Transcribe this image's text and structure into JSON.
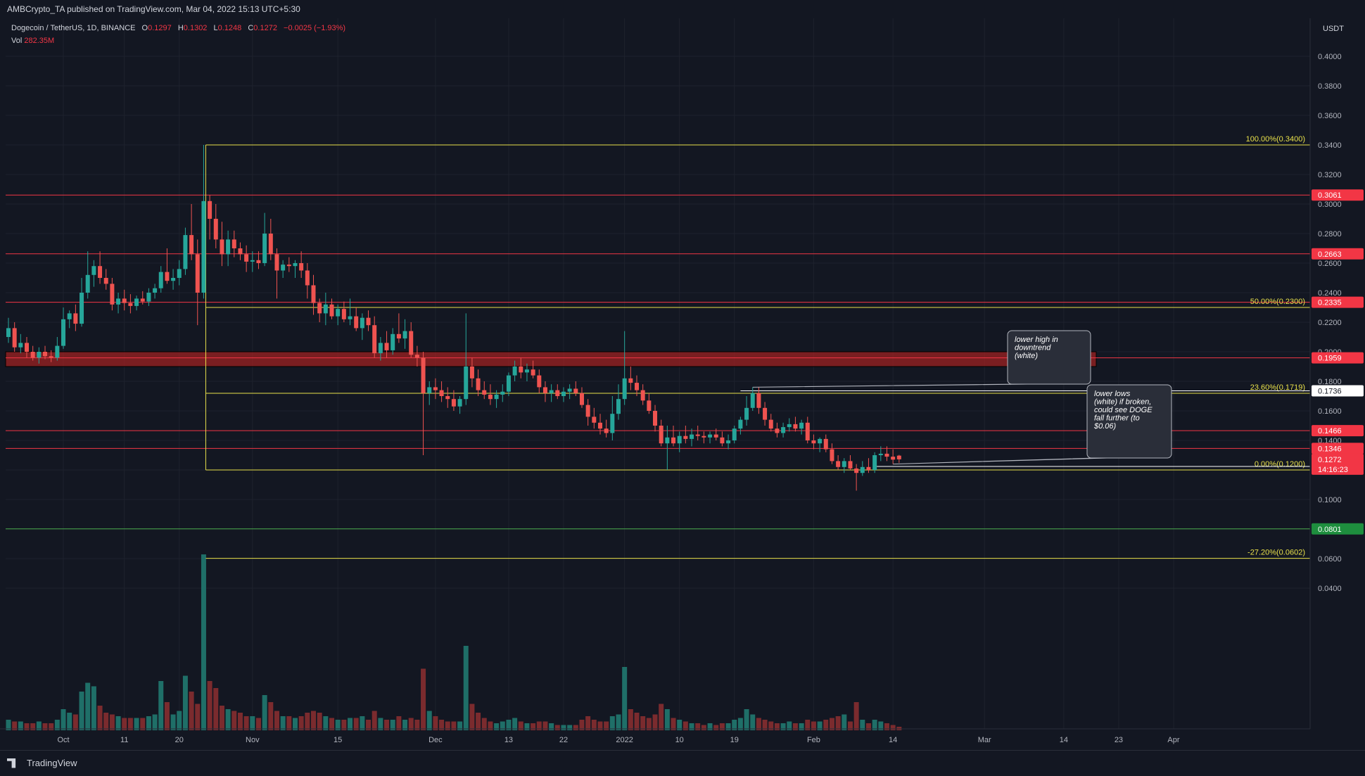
{
  "header": {
    "published": "AMBCrypto_TA published on TradingView.com, Mar 04, 2022 15:13 UTC+5:30"
  },
  "legend": {
    "symbol": "Dogecoin / TetherUS, 1D, BINANCE",
    "o_label": "O",
    "o_value": "0.1297",
    "h_label": "H",
    "h_value": "0.1302",
    "l_label": "L",
    "l_value": "0.1248",
    "c_label": "C",
    "c_value": "0.1272",
    "change": "−0.0025 (−1.93%)",
    "vol_label": "Vol",
    "vol_value": "282.35M"
  },
  "footer": {
    "brand": "TradingView"
  },
  "colors": {
    "background": "#131722",
    "up": "#26a69a",
    "down": "#ef5350",
    "level_red": "#f23645",
    "fib_yellow": "#e8e04a",
    "support_green": "#4caf50",
    "white": "#ffffff"
  },
  "chart_data": {
    "type": "candlestick",
    "currency": "USDT",
    "y_axis_ticks": [
      "0.0400",
      "0.0600",
      "0.1000",
      "0.1200",
      "0.1400",
      "0.1600",
      "0.1800",
      "0.2000",
      "0.2200",
      "0.2400",
      "0.2600",
      "0.2800",
      "0.3000",
      "0.3200",
      "0.3400",
      "0.3600",
      "0.3800",
      "0.4000"
    ],
    "x_axis_labels": [
      {
        "label": "Oct",
        "date": "2021-10-01"
      },
      {
        "label": "11",
        "date": "2021-10-11"
      },
      {
        "label": "20",
        "date": "2021-10-20"
      },
      {
        "label": "Nov",
        "date": "2021-11-01"
      },
      {
        "label": "15",
        "date": "2021-11-15"
      },
      {
        "label": "Dec",
        "date": "2021-12-01"
      },
      {
        "label": "13",
        "date": "2021-12-13"
      },
      {
        "label": "22",
        "date": "2021-12-22"
      },
      {
        "label": "2022",
        "date": "2022-01-01"
      },
      {
        "label": "10",
        "date": "2022-01-10"
      },
      {
        "label": "19",
        "date": "2022-01-19"
      },
      {
        "label": "Feb",
        "date": "2022-02-01"
      },
      {
        "label": "14",
        "date": "2022-02-14"
      },
      {
        "label": "Mar",
        "date": "2022-03-01"
      },
      {
        "label": "14",
        "date": "2022-03-14"
      },
      {
        "label": "23",
        "date": "2022-03-23"
      },
      {
        "label": "Apr",
        "date": "2022-04-01"
      }
    ],
    "first_candle_date": "2021-09-22",
    "candles_ohlc": [
      [
        0.21,
        0.223,
        0.206,
        0.216
      ],
      [
        0.216,
        0.22,
        0.2,
        0.203
      ],
      [
        0.203,
        0.212,
        0.199,
        0.206
      ],
      [
        0.206,
        0.21,
        0.196,
        0.2
      ],
      [
        0.2,
        0.204,
        0.194,
        0.196
      ],
      [
        0.196,
        0.203,
        0.192,
        0.2
      ],
      [
        0.2,
        0.204,
        0.195,
        0.197
      ],
      [
        0.197,
        0.201,
        0.193,
        0.196
      ],
      [
        0.196,
        0.21,
        0.194,
        0.204
      ],
      [
        0.204,
        0.23,
        0.202,
        0.222
      ],
      [
        0.222,
        0.228,
        0.216,
        0.226
      ],
      [
        0.226,
        0.232,
        0.214,
        0.219
      ],
      [
        0.219,
        0.25,
        0.217,
        0.24
      ],
      [
        0.24,
        0.268,
        0.236,
        0.252
      ],
      [
        0.252,
        0.262,
        0.244,
        0.258
      ],
      [
        0.258,
        0.268,
        0.246,
        0.25
      ],
      [
        0.25,
        0.256,
        0.242,
        0.246
      ],
      [
        0.246,
        0.25,
        0.228,
        0.232
      ],
      [
        0.232,
        0.24,
        0.226,
        0.236
      ],
      [
        0.236,
        0.242,
        0.228,
        0.233
      ],
      [
        0.233,
        0.239,
        0.226,
        0.231
      ],
      [
        0.231,
        0.238,
        0.228,
        0.236
      ],
      [
        0.236,
        0.241,
        0.232,
        0.234
      ],
      [
        0.234,
        0.243,
        0.231,
        0.24
      ],
      [
        0.24,
        0.246,
        0.236,
        0.243
      ],
      [
        0.243,
        0.258,
        0.24,
        0.254
      ],
      [
        0.254,
        0.27,
        0.246,
        0.248
      ],
      [
        0.248,
        0.256,
        0.242,
        0.25
      ],
      [
        0.25,
        0.262,
        0.245,
        0.256
      ],
      [
        0.256,
        0.284,
        0.252,
        0.279
      ],
      [
        0.279,
        0.3,
        0.262,
        0.266
      ],
      [
        0.266,
        0.276,
        0.218,
        0.24
      ],
      [
        0.24,
        0.34,
        0.236,
        0.302
      ],
      [
        0.302,
        0.306,
        0.276,
        0.29
      ],
      [
        0.29,
        0.3,
        0.27,
        0.276
      ],
      [
        0.276,
        0.288,
        0.258,
        0.266
      ],
      [
        0.266,
        0.282,
        0.258,
        0.276
      ],
      [
        0.276,
        0.282,
        0.264,
        0.27
      ],
      [
        0.27,
        0.274,
        0.262,
        0.266
      ],
      [
        0.266,
        0.272,
        0.254,
        0.261
      ],
      [
        0.261,
        0.268,
        0.254,
        0.262
      ],
      [
        0.262,
        0.268,
        0.256,
        0.26
      ],
      [
        0.26,
        0.294,
        0.258,
        0.28
      ],
      [
        0.28,
        0.29,
        0.262,
        0.266
      ],
      [
        0.266,
        0.27,
        0.236,
        0.255
      ],
      [
        0.255,
        0.262,
        0.25,
        0.259
      ],
      [
        0.259,
        0.264,
        0.254,
        0.258
      ],
      [
        0.258,
        0.262,
        0.25,
        0.26
      ],
      [
        0.26,
        0.268,
        0.25,
        0.255
      ],
      [
        0.255,
        0.26,
        0.236,
        0.245
      ],
      [
        0.245,
        0.252,
        0.225,
        0.233
      ],
      [
        0.233,
        0.236,
        0.22,
        0.226
      ],
      [
        0.226,
        0.24,
        0.218,
        0.232
      ],
      [
        0.232,
        0.236,
        0.222,
        0.224
      ],
      [
        0.224,
        0.232,
        0.218,
        0.229
      ],
      [
        0.229,
        0.234,
        0.22,
        0.222
      ],
      [
        0.222,
        0.236,
        0.218,
        0.224
      ],
      [
        0.224,
        0.23,
        0.214,
        0.216
      ],
      [
        0.216,
        0.226,
        0.208,
        0.223
      ],
      [
        0.223,
        0.228,
        0.214,
        0.218
      ],
      [
        0.218,
        0.224,
        0.196,
        0.199
      ],
      [
        0.199,
        0.21,
        0.194,
        0.206
      ],
      [
        0.206,
        0.214,
        0.196,
        0.201
      ],
      [
        0.201,
        0.216,
        0.198,
        0.212
      ],
      [
        0.212,
        0.226,
        0.206,
        0.209
      ],
      [
        0.209,
        0.222,
        0.202,
        0.214
      ],
      [
        0.214,
        0.22,
        0.196,
        0.198
      ],
      [
        0.198,
        0.204,
        0.19,
        0.196
      ],
      [
        0.196,
        0.2,
        0.13,
        0.172
      ],
      [
        0.172,
        0.18,
        0.164,
        0.176
      ],
      [
        0.176,
        0.182,
        0.168,
        0.174
      ],
      [
        0.174,
        0.18,
        0.166,
        0.17
      ],
      [
        0.17,
        0.176,
        0.162,
        0.168
      ],
      [
        0.168,
        0.174,
        0.16,
        0.163
      ],
      [
        0.163,
        0.17,
        0.158,
        0.168
      ],
      [
        0.168,
        0.226,
        0.164,
        0.19
      ],
      [
        0.19,
        0.196,
        0.176,
        0.182
      ],
      [
        0.182,
        0.188,
        0.17,
        0.174
      ],
      [
        0.174,
        0.18,
        0.168,
        0.171
      ],
      [
        0.171,
        0.178,
        0.164,
        0.168
      ],
      [
        0.168,
        0.174,
        0.162,
        0.171
      ],
      [
        0.171,
        0.178,
        0.166,
        0.173
      ],
      [
        0.173,
        0.186,
        0.17,
        0.184
      ],
      [
        0.184,
        0.194,
        0.18,
        0.19
      ],
      [
        0.19,
        0.196,
        0.182,
        0.186
      ],
      [
        0.186,
        0.192,
        0.18,
        0.188
      ],
      [
        0.188,
        0.194,
        0.182,
        0.184
      ],
      [
        0.184,
        0.188,
        0.172,
        0.176
      ],
      [
        0.176,
        0.18,
        0.166,
        0.172
      ],
      [
        0.172,
        0.178,
        0.166,
        0.174
      ],
      [
        0.174,
        0.178,
        0.168,
        0.17
      ],
      [
        0.17,
        0.176,
        0.166,
        0.173
      ],
      [
        0.173,
        0.178,
        0.168,
        0.175
      ],
      [
        0.175,
        0.18,
        0.17,
        0.172
      ],
      [
        0.172,
        0.176,
        0.162,
        0.164
      ],
      [
        0.164,
        0.168,
        0.15,
        0.156
      ],
      [
        0.156,
        0.162,
        0.148,
        0.152
      ],
      [
        0.152,
        0.158,
        0.144,
        0.148
      ],
      [
        0.148,
        0.154,
        0.142,
        0.145
      ],
      [
        0.145,
        0.17,
        0.14,
        0.158
      ],
      [
        0.158,
        0.178,
        0.154,
        0.168
      ],
      [
        0.168,
        0.214,
        0.164,
        0.182
      ],
      [
        0.182,
        0.19,
        0.174,
        0.179
      ],
      [
        0.179,
        0.184,
        0.17,
        0.174
      ],
      [
        0.174,
        0.178,
        0.164,
        0.167
      ],
      [
        0.167,
        0.172,
        0.158,
        0.16
      ],
      [
        0.16,
        0.164,
        0.146,
        0.15
      ],
      [
        0.15,
        0.154,
        0.136,
        0.138
      ],
      [
        0.138,
        0.15,
        0.12,
        0.142
      ],
      [
        0.142,
        0.15,
        0.136,
        0.138
      ],
      [
        0.138,
        0.146,
        0.132,
        0.143
      ],
      [
        0.143,
        0.15,
        0.138,
        0.141
      ],
      [
        0.141,
        0.148,
        0.136,
        0.144
      ],
      [
        0.144,
        0.15,
        0.14,
        0.143
      ],
      [
        0.143,
        0.146,
        0.138,
        0.142
      ],
      [
        0.142,
        0.146,
        0.138,
        0.144
      ],
      [
        0.144,
        0.148,
        0.14,
        0.142
      ],
      [
        0.142,
        0.146,
        0.136,
        0.138
      ],
      [
        0.138,
        0.144,
        0.134,
        0.14
      ],
      [
        0.14,
        0.15,
        0.138,
        0.148
      ],
      [
        0.148,
        0.156,
        0.144,
        0.154
      ],
      [
        0.154,
        0.17,
        0.15,
        0.162
      ],
      [
        0.162,
        0.176,
        0.16,
        0.172
      ],
      [
        0.172,
        0.176,
        0.158,
        0.162
      ],
      [
        0.162,
        0.166,
        0.15,
        0.154
      ],
      [
        0.154,
        0.158,
        0.146,
        0.148
      ],
      [
        0.148,
        0.152,
        0.142,
        0.145
      ],
      [
        0.145,
        0.152,
        0.142,
        0.149
      ],
      [
        0.149,
        0.155,
        0.146,
        0.151
      ],
      [
        0.151,
        0.156,
        0.146,
        0.148
      ],
      [
        0.148,
        0.154,
        0.144,
        0.152
      ],
      [
        0.152,
        0.156,
        0.138,
        0.14
      ],
      [
        0.14,
        0.144,
        0.134,
        0.138
      ],
      [
        0.138,
        0.142,
        0.132,
        0.141
      ],
      [
        0.141,
        0.144,
        0.132,
        0.134
      ],
      [
        0.134,
        0.138,
        0.124,
        0.126
      ],
      [
        0.126,
        0.13,
        0.12,
        0.122
      ],
      [
        0.122,
        0.128,
        0.118,
        0.126
      ],
      [
        0.126,
        0.13,
        0.12,
        0.121
      ],
      [
        0.121,
        0.124,
        0.106,
        0.118
      ],
      [
        0.118,
        0.126,
        0.116,
        0.122
      ],
      [
        0.122,
        0.128,
        0.118,
        0.12
      ],
      [
        0.12,
        0.132,
        0.118,
        0.13
      ],
      [
        0.13,
        0.136,
        0.126,
        0.131
      ],
      [
        0.131,
        0.136,
        0.126,
        0.129
      ],
      [
        0.129,
        0.134,
        0.124,
        0.127
      ],
      [
        0.1297,
        0.1302,
        0.1248,
        0.1272
      ]
    ],
    "volume_scale_note": "volumes relative (0-1) to largest bar",
    "volumes": [
      0.06,
      0.05,
      0.05,
      0.04,
      0.04,
      0.05,
      0.04,
      0.04,
      0.06,
      0.12,
      0.1,
      0.09,
      0.22,
      0.27,
      0.25,
      0.14,
      0.1,
      0.09,
      0.08,
      0.07,
      0.07,
      0.07,
      0.07,
      0.08,
      0.09,
      0.28,
      0.16,
      0.09,
      0.11,
      0.31,
      0.22,
      0.15,
      1.0,
      0.28,
      0.24,
      0.14,
      0.12,
      0.11,
      0.1,
      0.08,
      0.08,
      0.07,
      0.2,
      0.16,
      0.11,
      0.08,
      0.08,
      0.07,
      0.08,
      0.1,
      0.11,
      0.1,
      0.08,
      0.07,
      0.06,
      0.06,
      0.07,
      0.07,
      0.08,
      0.06,
      0.11,
      0.07,
      0.06,
      0.06,
      0.08,
      0.06,
      0.07,
      0.06,
      0.35,
      0.11,
      0.08,
      0.06,
      0.05,
      0.05,
      0.05,
      0.48,
      0.15,
      0.1,
      0.07,
      0.05,
      0.04,
      0.05,
      0.06,
      0.07,
      0.05,
      0.04,
      0.04,
      0.05,
      0.05,
      0.04,
      0.03,
      0.03,
      0.03,
      0.03,
      0.06,
      0.08,
      0.06,
      0.05,
      0.05,
      0.08,
      0.09,
      0.36,
      0.12,
      0.1,
      0.08,
      0.07,
      0.09,
      0.15,
      0.12,
      0.07,
      0.06,
      0.05,
      0.04,
      0.04,
      0.03,
      0.04,
      0.03,
      0.04,
      0.04,
      0.06,
      0.07,
      0.12,
      0.09,
      0.07,
      0.06,
      0.05,
      0.04,
      0.04,
      0.05,
      0.04,
      0.04,
      0.06,
      0.05,
      0.05,
      0.06,
      0.07,
      0.08,
      0.09,
      0.05,
      0.16,
      0.06,
      0.04,
      0.06,
      0.05,
      0.04,
      0.03,
      0.02
    ],
    "horizontal_levels": [
      {
        "value": 0.3061,
        "label": "0.3061",
        "color": "red"
      },
      {
        "value": 0.2663,
        "label": "0.2663",
        "color": "red"
      },
      {
        "value": 0.2335,
        "label": "0.2335",
        "color": "red"
      },
      {
        "value": 0.1959,
        "label": "0.1959",
        "color": "red",
        "zone": [
          0.19,
          0.2
        ]
      },
      {
        "value": 0.1466,
        "label": "0.1466",
        "color": "red"
      },
      {
        "value": 0.1346,
        "label": "0.1346",
        "color": "red"
      },
      {
        "value": 0.0801,
        "label": "0.0801",
        "color": "green"
      }
    ],
    "fib_levels": [
      {
        "value": 0.34,
        "label": "100.00%(0.3400)"
      },
      {
        "value": 0.23,
        "label": "50.00%(0.2300)"
      },
      {
        "value": 0.1719,
        "label": "23.60%(0.1719)"
      },
      {
        "value": 0.12,
        "label": "0.00%(0.1200)"
      },
      {
        "value": 0.0602,
        "label": "-27.20%(0.0602)"
      }
    ],
    "white_levels": [
      {
        "value": 0.1736,
        "label": "0.1736"
      },
      {
        "value": 0.1224,
        "label": "0.1224"
      }
    ],
    "last_price": {
      "value": 0.1272,
      "label": "0.1272",
      "countdown": "14:16:23"
    },
    "annotations": [
      {
        "text_lines": [
          "lower high in",
          "downtrend",
          "(white)"
        ]
      },
      {
        "text_lines": [
          "lower lows",
          "(white) if broken,",
          "could see DOGE",
          "fall further (to",
          "$0.06)"
        ]
      }
    ]
  }
}
